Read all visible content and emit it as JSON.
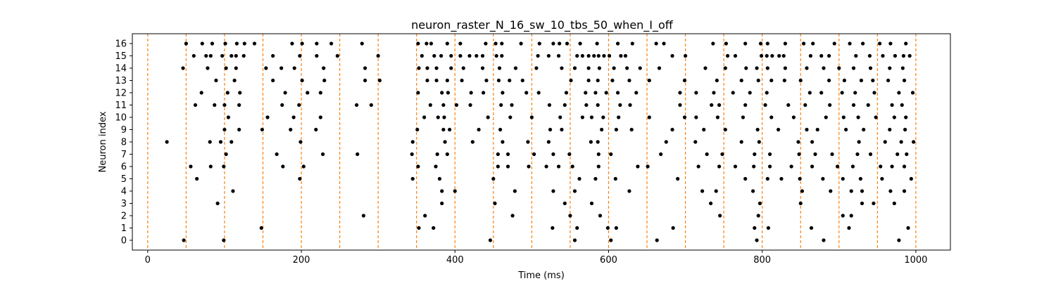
{
  "chart_data": {
    "type": "scatter",
    "title": "neuron_raster_N_16_sw_10_tbs_50_when_I_off",
    "xlabel": "Time (ms)",
    "ylabel": "Neuron index",
    "xlim": [
      -20,
      1045
    ],
    "ylim": [
      -0.8,
      16.8
    ],
    "xticks": [
      0,
      200,
      400,
      600,
      800,
      1000
    ],
    "yticks": [
      0,
      1,
      2,
      3,
      4,
      5,
      6,
      7,
      8,
      9,
      10,
      11,
      12,
      13,
      14,
      15,
      16
    ],
    "grid": false,
    "marker_color": "#000000",
    "vline_color": "#ff7f0e",
    "vlines": [
      0,
      50,
      100,
      150,
      200,
      250,
      300,
      350,
      400,
      450,
      500,
      550,
      600,
      650,
      700,
      750,
      800,
      850,
      900,
      950,
      1000
    ],
    "series": [
      {
        "y": 0,
        "x": [
          47,
          99,
          446,
          556,
          603,
          663,
          793,
          880,
          978
        ]
      },
      {
        "y": 1,
        "x": [
          148,
          353,
          372,
          527,
          559,
          599,
          610,
          684,
          790,
          808,
          864,
          913,
          990
        ]
      },
      {
        "y": 2,
        "x": [
          281,
          361,
          475,
          550,
          589,
          745,
          795,
          905,
          916
        ]
      },
      {
        "y": 3,
        "x": [
          91,
          383,
          452,
          543,
          578,
          733,
          797,
          850,
          930,
          945,
          972
        ]
      },
      {
        "y": 4,
        "x": [
          111,
          383,
          400,
          478,
          528,
          556,
          627,
          722,
          740,
          788,
          852,
          889,
          916,
          930,
          967,
          985
        ]
      },
      {
        "y": 5,
        "x": [
          64,
          198,
          345,
          380,
          450,
          562,
          583,
          609,
          690,
          778,
          807,
          825,
          849,
          879,
          905,
          928,
          956,
          994
        ]
      },
      {
        "y": 6,
        "x": [
          56,
          82,
          99,
          176,
          203,
          352,
          375,
          456,
          469,
          496,
          519,
          535,
          553,
          587,
          638,
          651,
          717,
          744,
          765,
          789,
          810,
          838,
          865,
          898,
          918,
          954,
          969,
          985
        ]
      },
      {
        "y": 7,
        "x": [
          102,
          168,
          228,
          273,
          344,
          377,
          390,
          456,
          469,
          503,
          528,
          549,
          587,
          603,
          668,
          728,
          748,
          790,
          810,
          848,
          869,
          891,
          924,
          941,
          976,
          988
        ]
      },
      {
        "y": 8,
        "x": [
          25,
          81,
          95,
          109,
          199,
          345,
          387,
          423,
          462,
          495,
          522,
          577,
          586,
          675,
          713,
          773,
          796,
          847,
          865,
          926,
          960,
          981,
          997
        ]
      },
      {
        "y": 9,
        "x": [
          100,
          119,
          149,
          186,
          219,
          351,
          385,
          393,
          431,
          459,
          524,
          539,
          591,
          610,
          630,
          683,
          724,
          752,
          794,
          821,
          858,
          872,
          909,
          932,
          966,
          986
        ]
      },
      {
        "y": 10,
        "x": [
          105,
          156,
          190,
          225,
          360,
          378,
          386,
          443,
          472,
          500,
          537,
          566,
          578,
          593,
          613,
          653,
          699,
          714,
          742,
          775,
          812,
          841,
          883,
          906,
          925,
          948,
          972,
          987
        ]
      },
      {
        "y": 11,
        "x": [
          62,
          87,
          100,
          119,
          175,
          197,
          272,
          291,
          368,
          385,
          402,
          420,
          460,
          474,
          523,
          543,
          571,
          586,
          615,
          628,
          693,
          734,
          744,
          778,
          804,
          834,
          856,
          888,
          919,
          938,
          969,
          982
        ]
      },
      {
        "y": 12,
        "x": [
          70,
          104,
          120,
          179,
          208,
          225,
          352,
          383,
          391,
          421,
          437,
          462,
          493,
          509,
          545,
          570,
          583,
          597,
          612,
          636,
          693,
          714,
          737,
          762,
          784,
          806,
          862,
          877,
          904,
          921,
          946,
          978,
          996
        ]
      },
      {
        "y": 13,
        "x": [
          89,
          113,
          163,
          201,
          230,
          283,
          302,
          364,
          376,
          390,
          409,
          441,
          457,
          471,
          488,
          551,
          574,
          586,
          605,
          627,
          653,
          699,
          741,
          773,
          795,
          812,
          829,
          850,
          887,
          907,
          929,
          944,
          964,
          985
        ]
      },
      {
        "y": 14,
        "x": [
          46,
          78,
          102,
          115,
          154,
          174,
          191,
          229,
          283,
          353,
          364,
          376,
          395,
          411,
          436,
          458,
          479,
          506,
          539,
          556,
          574,
          588,
          607,
          624,
          641,
          666,
          726,
          752,
          779,
          793,
          807,
          830,
          858,
          880,
          900,
          919,
          941,
          966,
          983
        ]
      },
      {
        "y": 15,
        "x": [
          60,
          76,
          82,
          97,
          109,
          115,
          125,
          163,
          198,
          220,
          247,
          300,
          357,
          373,
          382,
          395,
          407,
          419,
          428,
          436,
          454,
          461,
          508,
          522,
          535,
          559,
          566,
          574,
          581,
          587,
          594,
          601,
          616,
          622,
          683,
          700,
          755,
          765,
          799,
          806,
          813,
          822,
          828,
          863,
          877,
          887,
          922,
          940,
          957,
          973,
          984,
          992
        ]
      },
      {
        "y": 16,
        "x": [
          50,
          71,
          84,
          101,
          116,
          126,
          139,
          188,
          201,
          220,
          239,
          279,
          352,
          363,
          369,
          390,
          407,
          440,
          453,
          461,
          486,
          510,
          528,
          536,
          546,
          563,
          585,
          612,
          631,
          662,
          672,
          736,
          753,
          778,
          798,
          807,
          830,
          854,
          866,
          894,
          914,
          931,
          953,
          967,
          987
        ]
      }
    ]
  }
}
